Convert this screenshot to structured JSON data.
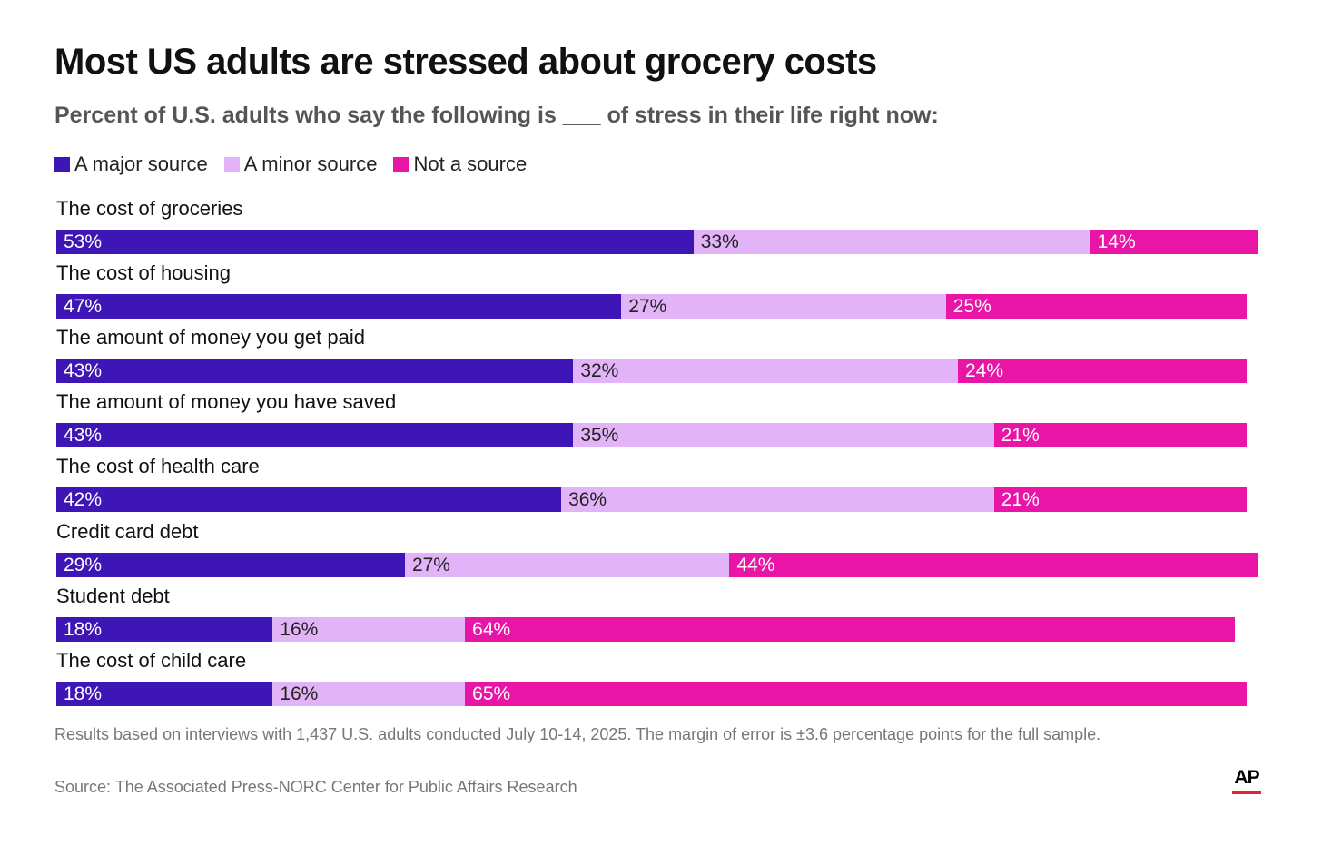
{
  "title": "Most US adults are stressed about grocery costs",
  "subtitle": "Percent of U.S. adults who say the following is ___ of stress in their life right now:",
  "legend": [
    {
      "label": "A major source",
      "color": "#3d16b5"
    },
    {
      "label": "A minor source",
      "color": "#e2b3f6"
    },
    {
      "label": "Not a source",
      "color": "#e815a6"
    }
  ],
  "chart_data": {
    "type": "bar",
    "orientation": "horizontal-stacked",
    "categories": [
      "The cost of groceries",
      "The cost of housing",
      "The amount of money you get paid",
      "The amount of money you have saved",
      "The cost of health care",
      "Credit card debt",
      "Student debt",
      "The cost of child care"
    ],
    "series": [
      {
        "name": "A major source",
        "color": "#3d16b5",
        "values": [
          53,
          47,
          43,
          43,
          42,
          29,
          18,
          18
        ]
      },
      {
        "name": "A minor source",
        "color": "#e2b3f6",
        "values": [
          33,
          27,
          32,
          35,
          36,
          27,
          16,
          16
        ]
      },
      {
        "name": "Not a source",
        "color": "#e815a6",
        "values": [
          14,
          25,
          24,
          21,
          21,
          44,
          64,
          65
        ]
      }
    ],
    "unit": "%"
  },
  "note": "Results based on interviews with 1,437 U.S. adults conducted July 10-14, 2025. The margin of error is ±3.6 percentage points for the full sample.",
  "source": "Source: The Associated Press-NORC Center for Public Affairs Research",
  "logo": "AP"
}
